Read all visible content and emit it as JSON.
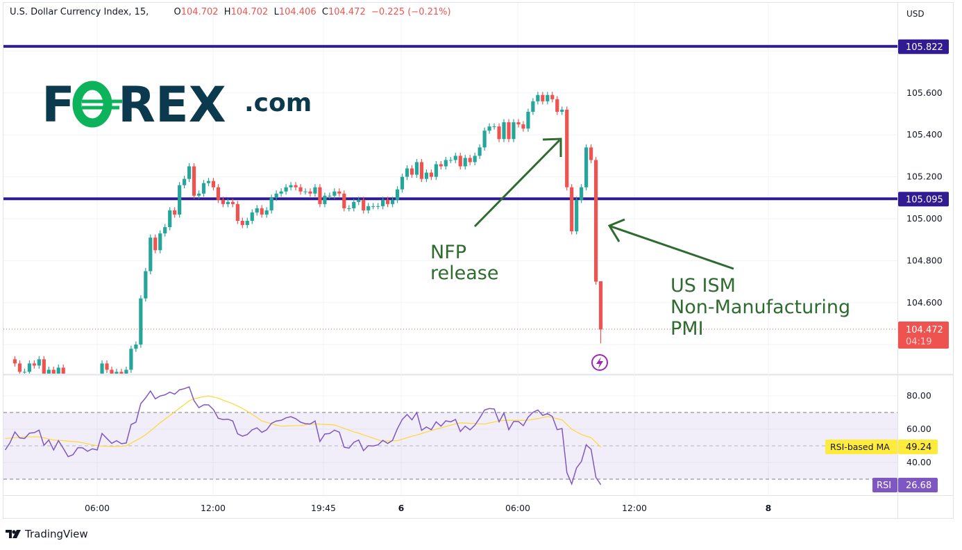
{
  "header": {
    "symbol": "U.S. Dollar Currency Index, 15,",
    "o_label": "O",
    "o": "104.702",
    "h_label": "H",
    "h": "104.702",
    "l_label": "L",
    "l": "104.406",
    "c_label": "C",
    "c": "104.472",
    "change": "−0.225 (−0.21%)"
  },
  "logo": {
    "text": "FOREX.com"
  },
  "footer": {
    "brand": "TradingView"
  },
  "annotations": {
    "nfp": [
      "NFP",
      "release"
    ],
    "ism": [
      "US ISM",
      "Non-Manufacturing",
      "PMI"
    ]
  },
  "colors": {
    "up": "#26a69a",
    "down": "#ef5350",
    "level": "#311b92",
    "rsi": "#7e57c2",
    "rsi_ma": "#fdd835",
    "annotation": "#2e6b2e",
    "logo_dark": "#0b3a4e",
    "logo_green": "#0cb35a"
  },
  "chart_data": [
    {
      "type": "candlestick",
      "title": "U.S. Dollar Currency Index, 15",
      "currency": "USD",
      "y_ticks": [
        "105.600",
        "105.400",
        "105.200",
        "105.000",
        "104.800",
        "104.600"
      ],
      "ylim": [
        104.26,
        106.04
      ],
      "x_ticks": [
        "06:00",
        "12:00",
        "19:45",
        "6",
        "06:00",
        "12:00",
        "8"
      ],
      "grid": true,
      "levels": [
        {
          "value": 105.822,
          "label": "105.822"
        },
        {
          "value": 105.095,
          "label": "105.095"
        }
      ],
      "last_price": {
        "value": 104.472,
        "label": "104.472",
        "countdown": "04:19"
      },
      "last_bar": {
        "open": 104.702,
        "high": 104.702,
        "low": 104.406,
        "close": 104.472
      },
      "closes": [
        104.31,
        104.27,
        104.27,
        104.31,
        104.3,
        104.33,
        104.24,
        104.28,
        104.23,
        104.29,
        104.22,
        104.2,
        104.19,
        104.21,
        104.22,
        104.21,
        104.24,
        104.22,
        104.31,
        104.28,
        104.24,
        104.27,
        104.24,
        104.28,
        104.38,
        104.4,
        104.62,
        104.75,
        104.91,
        104.85,
        104.93,
        104.96,
        105.04,
        105.02,
        105.16,
        105.19,
        105.25,
        105.11,
        105.12,
        105.17,
        105.18,
        105.15,
        105.09,
        105.07,
        105.08,
        105.07,
        104.99,
        104.97,
        104.99,
        105.03,
        105.05,
        105.02,
        105.04,
        105.1,
        105.12,
        105.13,
        105.15,
        105.16,
        105.15,
        105.13,
        105.13,
        105.12,
        105.15,
        105.07,
        105.11,
        105.11,
        105.13,
        105.12,
        105.05,
        105.05,
        105.08,
        105.09,
        105.04,
        105.06,
        105.06,
        105.06,
        105.09,
        105.07,
        105.09,
        105.14,
        105.2,
        105.24,
        105.21,
        105.27,
        105.19,
        105.22,
        105.2,
        105.26,
        105.25,
        105.28,
        105.28,
        105.3,
        105.25,
        105.29,
        105.27,
        105.3,
        105.34,
        105.42,
        105.44,
        105.44,
        105.38,
        105.46,
        105.38,
        105.46,
        105.45,
        105.43,
        105.51,
        105.56,
        105.59,
        105.56,
        105.59,
        105.57,
        105.51,
        105.52,
        105.15,
        104.94,
        105.09,
        105.15,
        105.34,
        105.28,
        104.7,
        104.47
      ]
    },
    {
      "type": "line",
      "title": "RSI",
      "y_ticks": [
        "80.00",
        "60.00",
        "40.00"
      ],
      "ylim": [
        8,
        92
      ],
      "bands": [
        30,
        50,
        70
      ],
      "series": [
        {
          "name": "RSI",
          "value_label": "26.68",
          "values": [
            47.5,
            51.9,
            58.3,
            54.7,
            54.4,
            57.6,
            57.9,
            59.4,
            50.3,
            53.5,
            47.5,
            53.1,
            48.5,
            43.5,
            44.7,
            48.9,
            48.8,
            46.7,
            48.2,
            47.5,
            57.4,
            54.4,
            51.5,
            53.1,
            51.3,
            51.7,
            62.8,
            64.2,
            75.3,
            78.8,
            82.9,
            78.2,
            79.9,
            80.6,
            82.2,
            81.0,
            83.6,
            84.3,
            85.4,
            77.1,
            72.9,
            74.6,
            74.6,
            71.8,
            66.5,
            65.8,
            66.0,
            64.9,
            57.2,
            55.8,
            56.8,
            59.6,
            60.8,
            58.1,
            59.6,
            63.5,
            64.9,
            65.3,
            66.8,
            67.5,
            66.3,
            64.2,
            63.3,
            63.1,
            64.9,
            52.6,
            57.1,
            57.4,
            59.4,
            58.2,
            49.2,
            48.6,
            52.1,
            53.5,
            47.1,
            50.1,
            49.9,
            50.6,
            53.3,
            51.4,
            53.3,
            60.3,
            65.8,
            68.8,
            65.6,
            70,
            59.3,
            61.3,
            59.7,
            64.4,
            61.8,
            65,
            64.4,
            65.8,
            58.6,
            61.8,
            59.6,
            62.4,
            66.7,
            71.5,
            72.4,
            72.1,
            64.4,
            69.7,
            59.7,
            64.6,
            64.6,
            62.1,
            67.2,
            70.1,
            71.5,
            68.3,
            69.3,
            67.6,
            59.7,
            60.4,
            34,
            27.1,
            36.8,
            40.6,
            50.6,
            47.9,
            31.1,
            26.68
          ]
        },
        {
          "name": "RSI-based MA",
          "value_label": "49.24",
          "values": [
            54.4,
            54.6,
            54.9,
            55.1,
            55.4,
            55.4,
            55.4,
            55.4,
            54.8,
            54.1,
            53.5,
            53.3,
            53.1,
            52.8,
            52.6,
            52.4,
            51.8,
            51.2,
            50.6,
            50.1,
            49.9,
            49.8,
            49.6,
            49.7,
            49.8,
            50.0,
            51.6,
            53.2,
            54.8,
            56.6,
            59.0,
            61.4,
            63.8,
            66.0,
            68.2,
            70.4,
            72.6,
            74.8,
            77.0,
            78.2,
            78.9,
            79.5,
            79.9,
            79.3,
            78.6,
            77.4,
            76.3,
            75.3,
            73.9,
            72.4,
            70.7,
            68.9,
            67.0,
            64.9,
            64.1,
            63.2,
            62.4,
            61.8,
            61.9,
            62.0,
            62.1,
            62.1,
            62.6,
            63.0,
            63.2,
            63.0,
            62.8,
            62.7,
            62.5,
            61.5,
            60.5,
            59.4,
            58.4,
            57.6,
            56.6,
            55.6,
            54.6,
            53.6,
            52.8,
            52.9,
            53.0,
            53.1,
            54.0,
            54.9,
            55.7,
            56.5,
            57.4,
            58.3,
            59.2,
            60.0,
            60.8,
            61.6,
            62.4,
            63.2,
            63.8,
            63.7,
            63.5,
            63.4,
            63.2,
            63.1,
            63.7,
            64.3,
            64.9,
            65.3,
            65.3,
            65.3,
            65.3,
            65.3,
            65.4,
            65.9,
            66.4,
            66.9,
            67.6,
            67.0,
            66.3,
            65.6,
            62.8,
            60.0,
            58.4,
            56.8,
            55.8,
            54.9,
            52.1,
            49.24
          ]
        }
      ]
    }
  ]
}
